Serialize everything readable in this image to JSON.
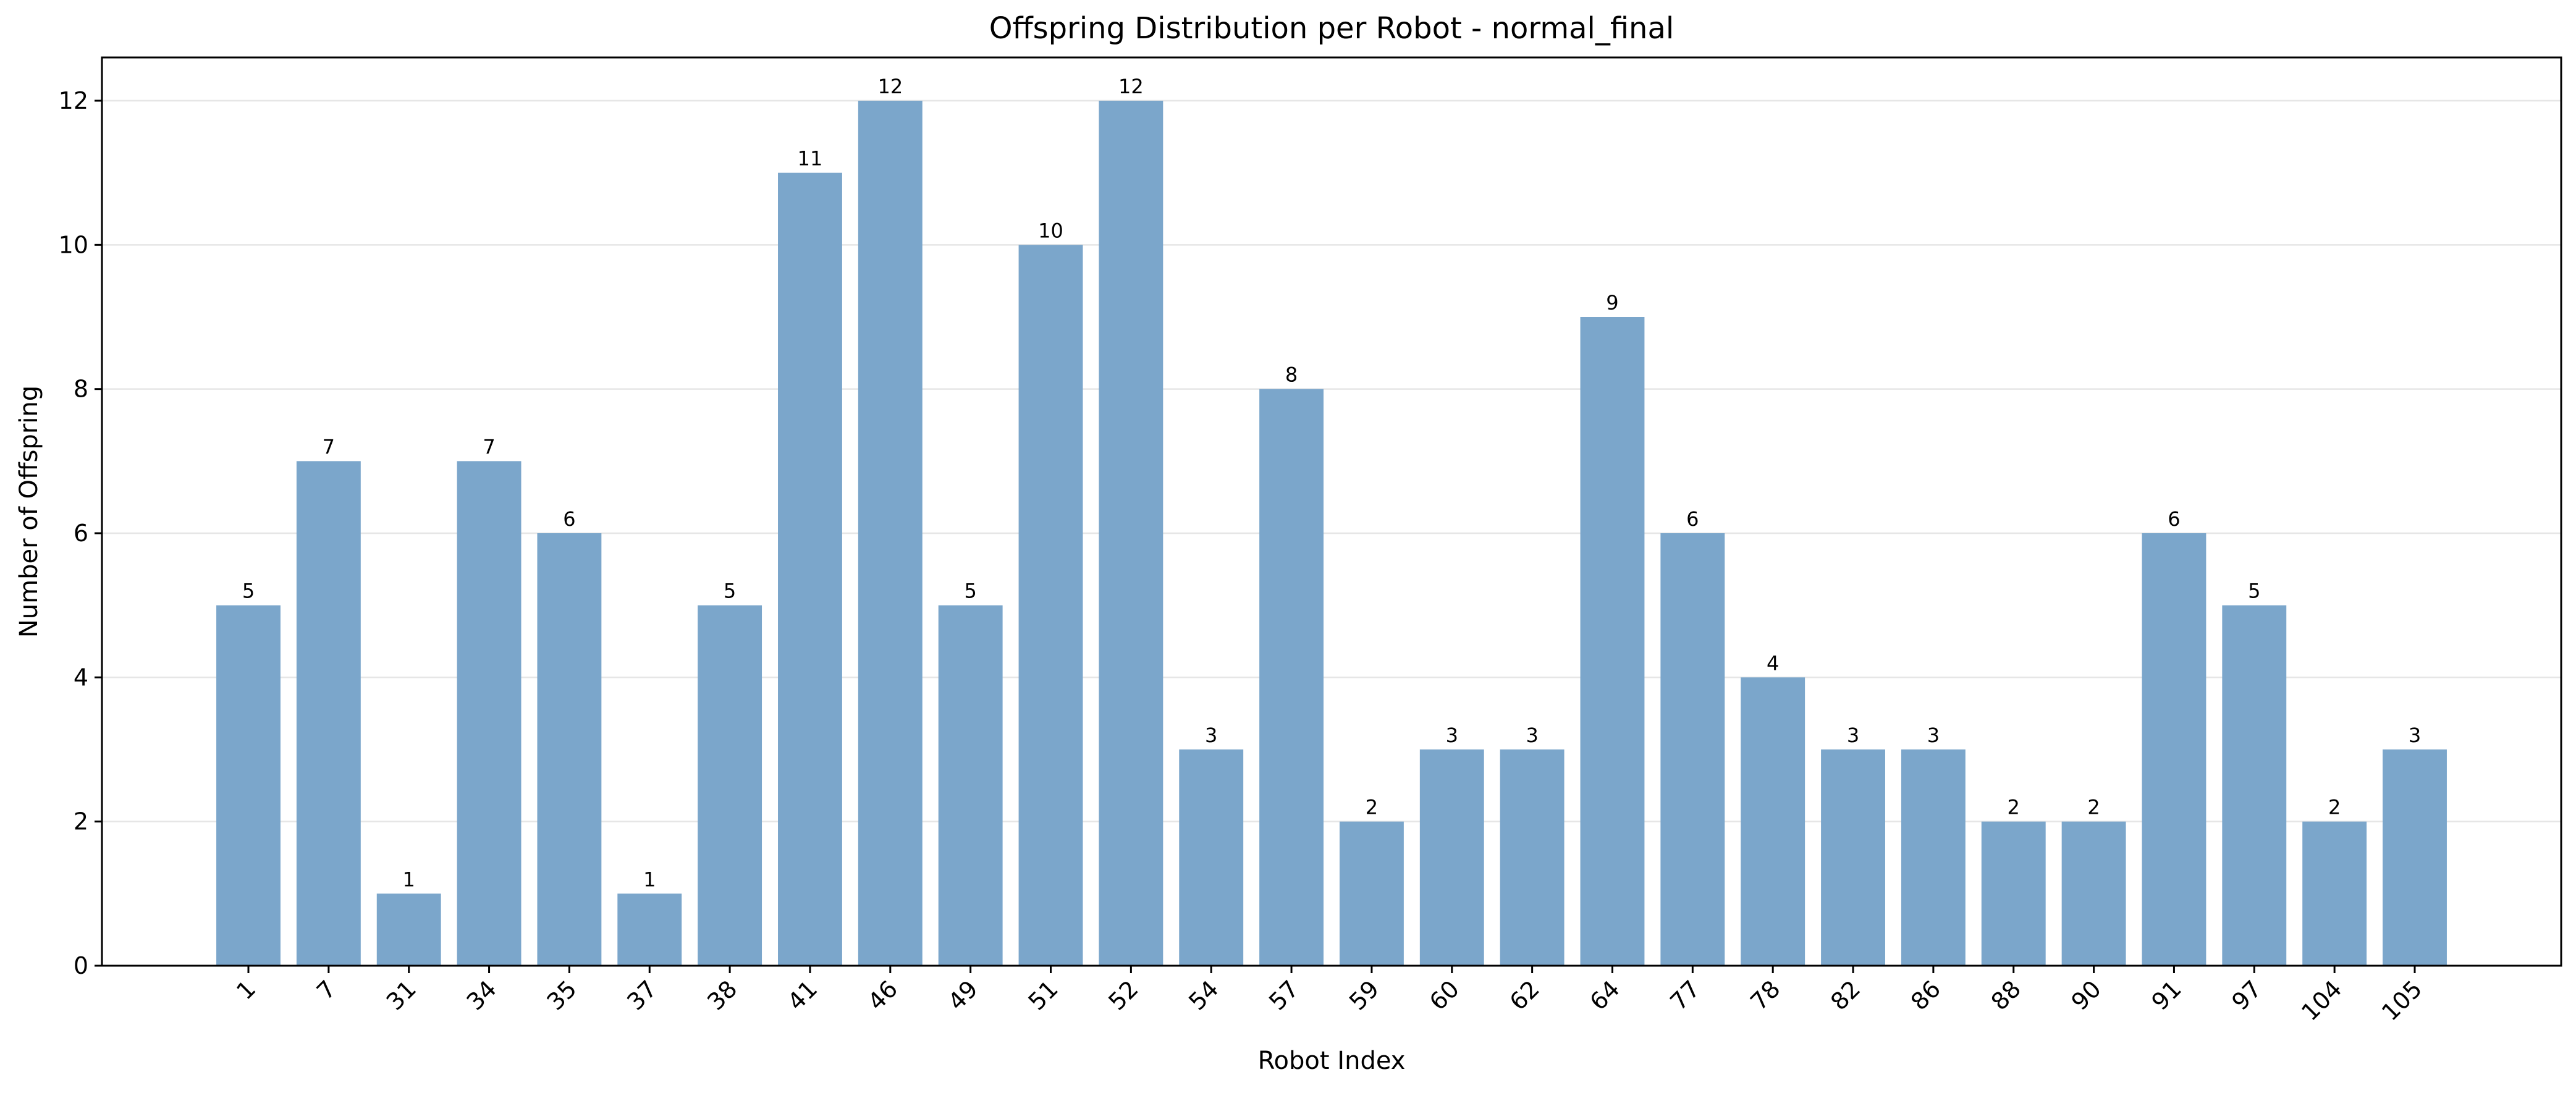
{
  "chart_data": {
    "type": "bar",
    "title": "Offspring Distribution per Robot - normal_final",
    "xlabel": "Robot Index",
    "ylabel": "Number of Offspring",
    "categories": [
      "1",
      "7",
      "31",
      "34",
      "35",
      "37",
      "38",
      "41",
      "46",
      "49",
      "51",
      "52",
      "54",
      "57",
      "59",
      "60",
      "62",
      "64",
      "77",
      "78",
      "82",
      "86",
      "88",
      "90",
      "91",
      "97",
      "104",
      "105"
    ],
    "values": [
      5,
      7,
      1,
      7,
      6,
      1,
      5,
      11,
      12,
      5,
      10,
      12,
      3,
      8,
      2,
      3,
      3,
      9,
      6,
      4,
      3,
      3,
      2,
      2,
      6,
      5,
      2,
      3
    ],
    "ylim": [
      0,
      12.6
    ],
    "yticks": [
      0,
      2,
      4,
      6,
      8,
      10,
      12
    ],
    "grid": "horizontal",
    "bar_color": "#7ba6cb",
    "xtick_rotation": 45
  }
}
